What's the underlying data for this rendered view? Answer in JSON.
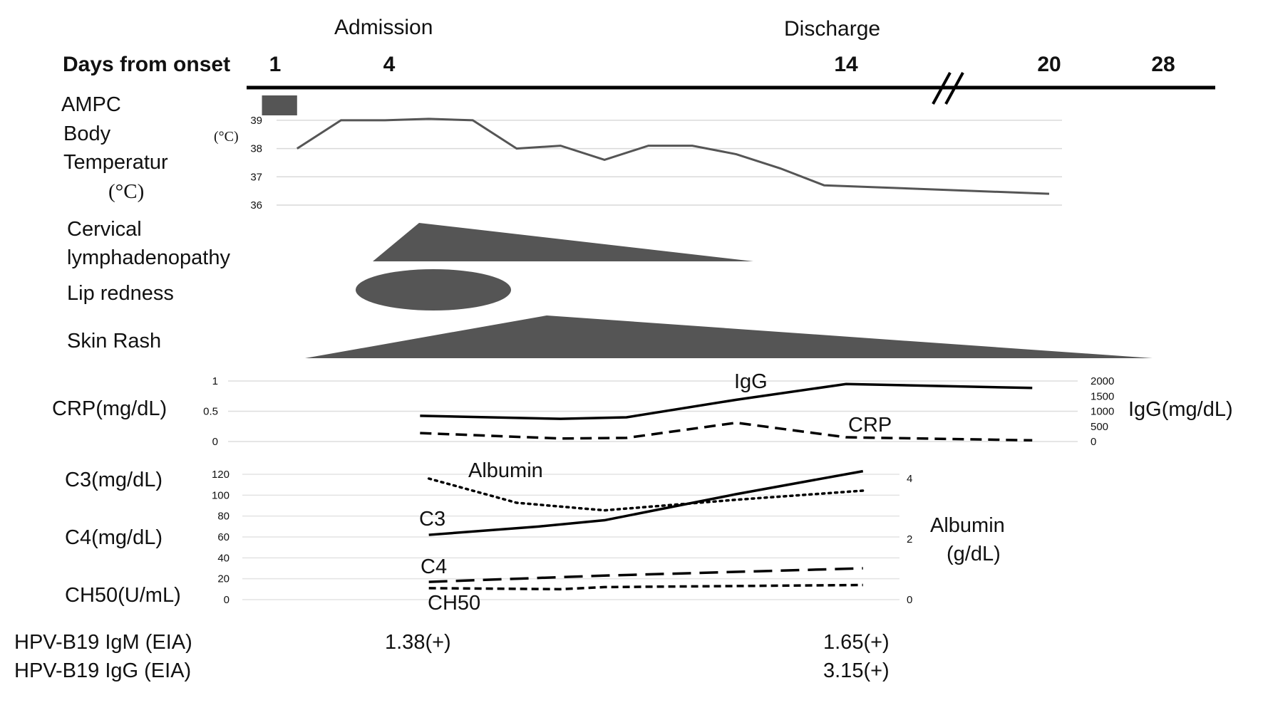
{
  "header": {
    "days_label": "Days from onset",
    "days": [
      {
        "day": 1,
        "label": "1"
      },
      {
        "day": 4,
        "label": "4"
      },
      {
        "day": 14,
        "label": "14"
      },
      {
        "day": 20,
        "label": "20"
      },
      {
        "day": 28,
        "label": "28"
      }
    ],
    "admission_label": "Admission",
    "admission_day": 4.0,
    "discharge_label": "Discharge",
    "discharge_day": 14.0
  },
  "rows": {
    "ampc": {
      "label": "AMPC",
      "start_day": 0.7,
      "end_day": 1.5
    },
    "temperature": {
      "label_lines": [
        "Body",
        "Temperatur",
        "(°C)"
      ],
      "unit": "(°C)",
      "y_ticks": [
        "36",
        "37",
        "38",
        "39"
      ]
    },
    "lymphadenopathy": {
      "label_lines": [
        "Cervical",
        "lymphadenopathy"
      ]
    },
    "lip_redness": {
      "label": "Lip redness"
    },
    "skin_rash": {
      "label": "Skin Rash"
    }
  },
  "panel2": {
    "left_label": "CRP(mg/dL)",
    "right_label": "IgG(mg/dL)",
    "left_ticks": [
      "0",
      "0.5",
      "1"
    ],
    "right_ticks": [
      "0",
      "500",
      "1000",
      "1500",
      "2000"
    ],
    "igg_label": "IgG",
    "crp_label": "CRP"
  },
  "panel3": {
    "labels": [
      "C3(mg/dL)",
      "C4(mg/dL)",
      "CH50(U/mL)"
    ],
    "left_ticks": [
      "0",
      "20",
      "40",
      "60",
      "80",
      "100",
      "120"
    ],
    "right_ticks": [
      "0",
      "2",
      "4"
    ],
    "right_label_lines": [
      "Albumin",
      "(g/dL)"
    ],
    "series_labels": {
      "albumin": "Albumin",
      "c3": "C3",
      "c4": "C4",
      "ch50": "CH50"
    }
  },
  "serology": {
    "igm_label": "HPV-B19 IgM (EIA)",
    "igg_label": "HPV-B19 IgG (EIA)",
    "igm_day4": "1.38(+)",
    "igm_day14": "1.65(+)",
    "igg_day14": "3.15(+)"
  },
  "chart_data": [
    {
      "type": "line",
      "title": "Body Temperature",
      "ylabel": "(°C)",
      "ylim": [
        36,
        39
      ],
      "series": [
        {
          "values": [
            {
              "x": 1.5,
              "y": 38.0
            },
            {
              "x": 2.5,
              "y": 39.0
            },
            {
              "x": 3.5,
              "y": 39.0
            },
            {
              "x": 4.5,
              "y": 39.05
            },
            {
              "x": 5.5,
              "y": 39.0
            },
            {
              "x": 6.5,
              "y": 38.0
            },
            {
              "x": 7.5,
              "y": 38.1
            },
            {
              "x": 8.5,
              "y": 37.6
            },
            {
              "x": 9.5,
              "y": 38.1
            },
            {
              "x": 10.5,
              "y": 38.1
            },
            {
              "x": 11.5,
              "y": 37.8
            },
            {
              "x": 12.5,
              "y": 37.3
            },
            {
              "x": 13.5,
              "y": 36.7
            },
            {
              "x": 20,
              "y": 36.4
            }
          ]
        }
      ]
    },
    {
      "type": "line",
      "ylabel": "CRP(mg/dL)",
      "ylim": [
        0,
        1
      ],
      "y2label": "IgG(mg/dL)",
      "y2lim": [
        0,
        2000
      ],
      "series": [
        {
          "name": "IgG",
          "axis": "right",
          "values": [
            {
              "x": 4.3,
              "y": 850
            },
            {
              "x": 7.5,
              "y": 750
            },
            {
              "x": 9,
              "y": 800
            },
            {
              "x": 11.5,
              "y": 1380
            },
            {
              "x": 14,
              "y": 1900
            },
            {
              "x": 19.5,
              "y": 1770
            }
          ]
        },
        {
          "name": "CRP",
          "axis": "left",
          "values": [
            {
              "x": 4.3,
              "y": 0.14
            },
            {
              "x": 7.5,
              "y": 0.05
            },
            {
              "x": 9,
              "y": 0.06
            },
            {
              "x": 11.5,
              "y": 0.31
            },
            {
              "x": 14,
              "y": 0.07
            },
            {
              "x": 19.5,
              "y": 0.02
            }
          ]
        }
      ]
    },
    {
      "type": "line",
      "ylim": [
        0,
        120
      ],
      "y2label": "Albumin (g/dL)",
      "y2lim": [
        0,
        4
      ],
      "series": [
        {
          "name": "Albumin",
          "axis": "right",
          "values": [
            {
              "x": 4.5,
              "y": 4.0
            },
            {
              "x": 6.5,
              "y": 3.2
            },
            {
              "x": 8.5,
              "y": 2.95
            },
            {
              "x": 11.5,
              "y": 3.3
            },
            {
              "x": 14.5,
              "y": 3.6
            }
          ]
        },
        {
          "name": "C3",
          "axis": "left",
          "values": [
            {
              "x": 4.5,
              "y": 62
            },
            {
              "x": 7,
              "y": 70
            },
            {
              "x": 8.5,
              "y": 76
            },
            {
              "x": 11.5,
              "y": 101
            },
            {
              "x": 14.5,
              "y": 123
            }
          ]
        },
        {
          "name": "C4",
          "axis": "left",
          "values": [
            {
              "x": 4.5,
              "y": 17
            },
            {
              "x": 8.5,
              "y": 23
            },
            {
              "x": 14.5,
              "y": 30
            }
          ]
        },
        {
          "name": "CH50",
          "axis": "left",
          "values": [
            {
              "x": 4.5,
              "y": 11
            },
            {
              "x": 7.5,
              "y": 10
            },
            {
              "x": 8.5,
              "y": 12
            },
            {
              "x": 14.5,
              "y": 14
            }
          ]
        }
      ]
    }
  ]
}
